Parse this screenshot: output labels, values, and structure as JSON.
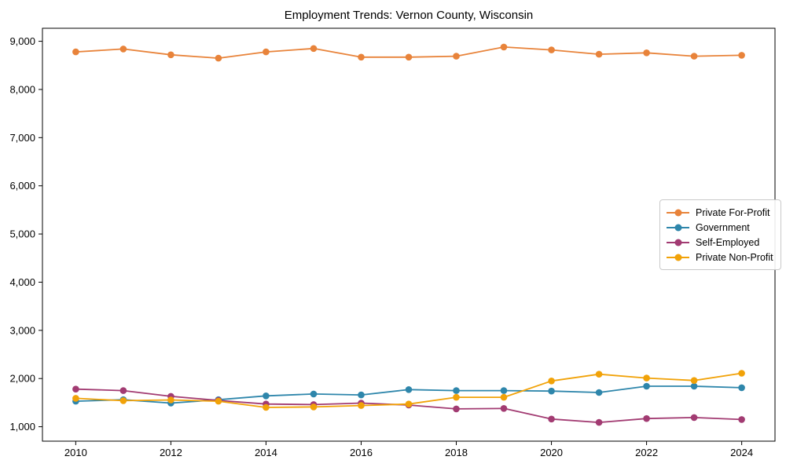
{
  "figure": {
    "background": "#ffffff",
    "axes_edge_color": "#000000",
    "tick_label_color": "#000000"
  },
  "chart_data": {
    "type": "line",
    "title": "Employment Trends: Vernon County, Wisconsin",
    "xlabel": "",
    "ylabel": "",
    "x": [
      2010,
      2011,
      2012,
      2013,
      2014,
      2015,
      2016,
      2017,
      2018,
      2019,
      2020,
      2021,
      2022,
      2023,
      2024
    ],
    "series": [
      {
        "name": "Private For-Profit",
        "color": "#E8833A",
        "marker": "circle",
        "values": [
          8780,
          8840,
          8720,
          8650,
          8780,
          8850,
          8670,
          8670,
          8690,
          8880,
          8820,
          8730,
          8760,
          8690,
          8710
        ]
      },
      {
        "name": "Government",
        "color": "#2E86AB",
        "marker": "circle",
        "values": [
          1530,
          1560,
          1490,
          1560,
          1640,
          1680,
          1660,
          1770,
          1750,
          1750,
          1740,
          1710,
          1840,
          1840,
          1810
        ]
      },
      {
        "name": "Self-Employed",
        "color": "#A23B72",
        "marker": "circle",
        "values": [
          1780,
          1750,
          1630,
          1545,
          1470,
          1460,
          1490,
          1450,
          1370,
          1380,
          1160,
          1090,
          1170,
          1190,
          1150
        ]
      },
      {
        "name": "Private Non-Profit",
        "color": "#F1A208",
        "marker": "circle",
        "values": [
          1590,
          1540,
          1555,
          1530,
          1400,
          1410,
          1440,
          1470,
          1610,
          1610,
          1950,
          2090,
          2010,
          1960,
          2110
        ]
      }
    ],
    "xticks": [
      2010,
      2012,
      2014,
      2016,
      2018,
      2020,
      2022,
      2024
    ],
    "xtick_labels": [
      "2010",
      "2012",
      "2014",
      "2016",
      "2018",
      "2020",
      "2022",
      "2024"
    ],
    "yticks": [
      1000,
      2000,
      3000,
      4000,
      5000,
      6000,
      7000,
      8000,
      9000
    ],
    "ytick_labels": [
      "1,000",
      "2,000",
      "3,000",
      "4,000",
      "5,000",
      "6,000",
      "7,000",
      "8,000",
      "9,000"
    ],
    "xlim": [
      2009.3,
      2024.7
    ],
    "ylim": [
      700,
      9270
    ],
    "grid": false,
    "legend_position": "center right",
    "legend_entries": [
      "Private For-Profit",
      "Government",
      "Self-Employed",
      "Private Non-Profit"
    ]
  }
}
